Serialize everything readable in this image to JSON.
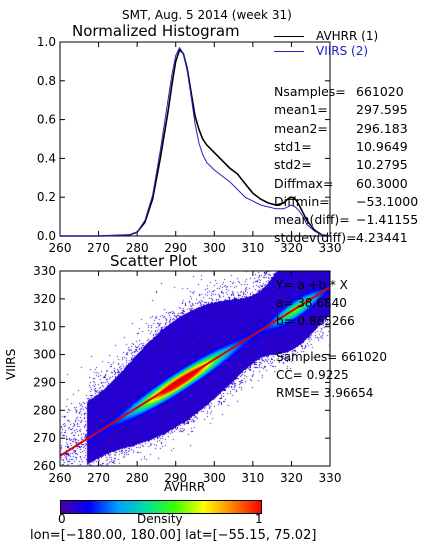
{
  "header": {
    "title": "SMT,  Aug. 5 2014 (week 31)"
  },
  "colors": {
    "avhrr": "#000000",
    "viirs": "#2020c8",
    "fit_line": "#e00000"
  },
  "chart_data": [
    {
      "type": "line",
      "title": "Normalized Histogram",
      "xlim": [
        260,
        330
      ],
      "ylim": [
        0,
        1.0
      ],
      "x_ticks": [
        "260",
        "270",
        "280",
        "290",
        "300",
        "310",
        "320",
        "330"
      ],
      "y_ticks": [
        "0.0",
        "0.2",
        "0.4",
        "0.6",
        "0.8",
        "1.0"
      ],
      "x": [
        260,
        270,
        278,
        280,
        282,
        284,
        286,
        288,
        289,
        290,
        291,
        292,
        293,
        294,
        295,
        296,
        297,
        298,
        300,
        302,
        304,
        306,
        308,
        310,
        312,
        314,
        316,
        318,
        319,
        320,
        321,
        322,
        323,
        324,
        326,
        328,
        330
      ],
      "series": [
        {
          "name": "AVHRR (1)",
          "color": "#000000",
          "values": [
            0,
            0,
            0.005,
            0.02,
            0.07,
            0.19,
            0.4,
            0.64,
            0.78,
            0.9,
            0.96,
            0.94,
            0.86,
            0.74,
            0.62,
            0.55,
            0.5,
            0.47,
            0.43,
            0.39,
            0.35,
            0.32,
            0.27,
            0.22,
            0.19,
            0.17,
            0.16,
            0.17,
            0.19,
            0.2,
            0.19,
            0.16,
            0.12,
            0.08,
            0.03,
            0.005,
            0
          ]
        },
        {
          "name": "VIIRS (2)",
          "color": "#2020c8",
          "values": [
            0,
            0,
            0.005,
            0.02,
            0.08,
            0.21,
            0.44,
            0.7,
            0.83,
            0.93,
            0.97,
            0.94,
            0.85,
            0.72,
            0.58,
            0.48,
            0.42,
            0.38,
            0.34,
            0.31,
            0.28,
            0.24,
            0.2,
            0.18,
            0.16,
            0.15,
            0.14,
            0.14,
            0.15,
            0.16,
            0.15,
            0.13,
            0.1,
            0.06,
            0.025,
            0.005,
            0
          ]
        }
      ]
    },
    {
      "type": "heatmap",
      "title": "Scatter Plot",
      "xlabel": "AVHRR",
      "ylabel": "VIIRS",
      "xlim": [
        260,
        330
      ],
      "ylim": [
        260,
        330
      ],
      "x_ticks": [
        "260",
        "270",
        "280",
        "290",
        "300",
        "310",
        "320",
        "330"
      ],
      "y_ticks": [
        "260",
        "270",
        "280",
        "290",
        "300",
        "310",
        "320",
        "330"
      ],
      "fit": {
        "a": 38.684,
        "b": 0.865266
      },
      "colorbar": {
        "label": "Density",
        "min": "0",
        "max": "1"
      }
    }
  ],
  "stats": [
    {
      "label": "Nsamples=",
      "value": "661020"
    },
    {
      "label": "mean1=",
      "value": "297.595"
    },
    {
      "label": "mean2=",
      "value": "296.183"
    },
    {
      "label": "std1=",
      "value": "10.9649"
    },
    {
      "label": "std2=",
      "value": "10.2795"
    },
    {
      "label": "Diffmax=",
      "value": "60.3000"
    },
    {
      "label": "Diffmin=",
      "value": "−53.1000"
    },
    {
      "label": "mean(diff)=",
      "value": "−1.41155"
    },
    {
      "label": "stddev(diff)=",
      "value": "4.23441"
    }
  ],
  "fit_text": {
    "equation": "Y= a +b * X",
    "a_label": "a=",
    "a_value": "38.6840",
    "b_label": "b=",
    "b_value": "0.865266",
    "samples_label": "Samples=",
    "samples_value": "661020",
    "cc_label": "CC=",
    "cc_value": "0.9225",
    "rmse_label": "RMSE=",
    "rmse_value": "3.96654"
  },
  "footer": {
    "range": "lon=[−180.00, 180.00] lat=[−55.15, 75.02]"
  }
}
